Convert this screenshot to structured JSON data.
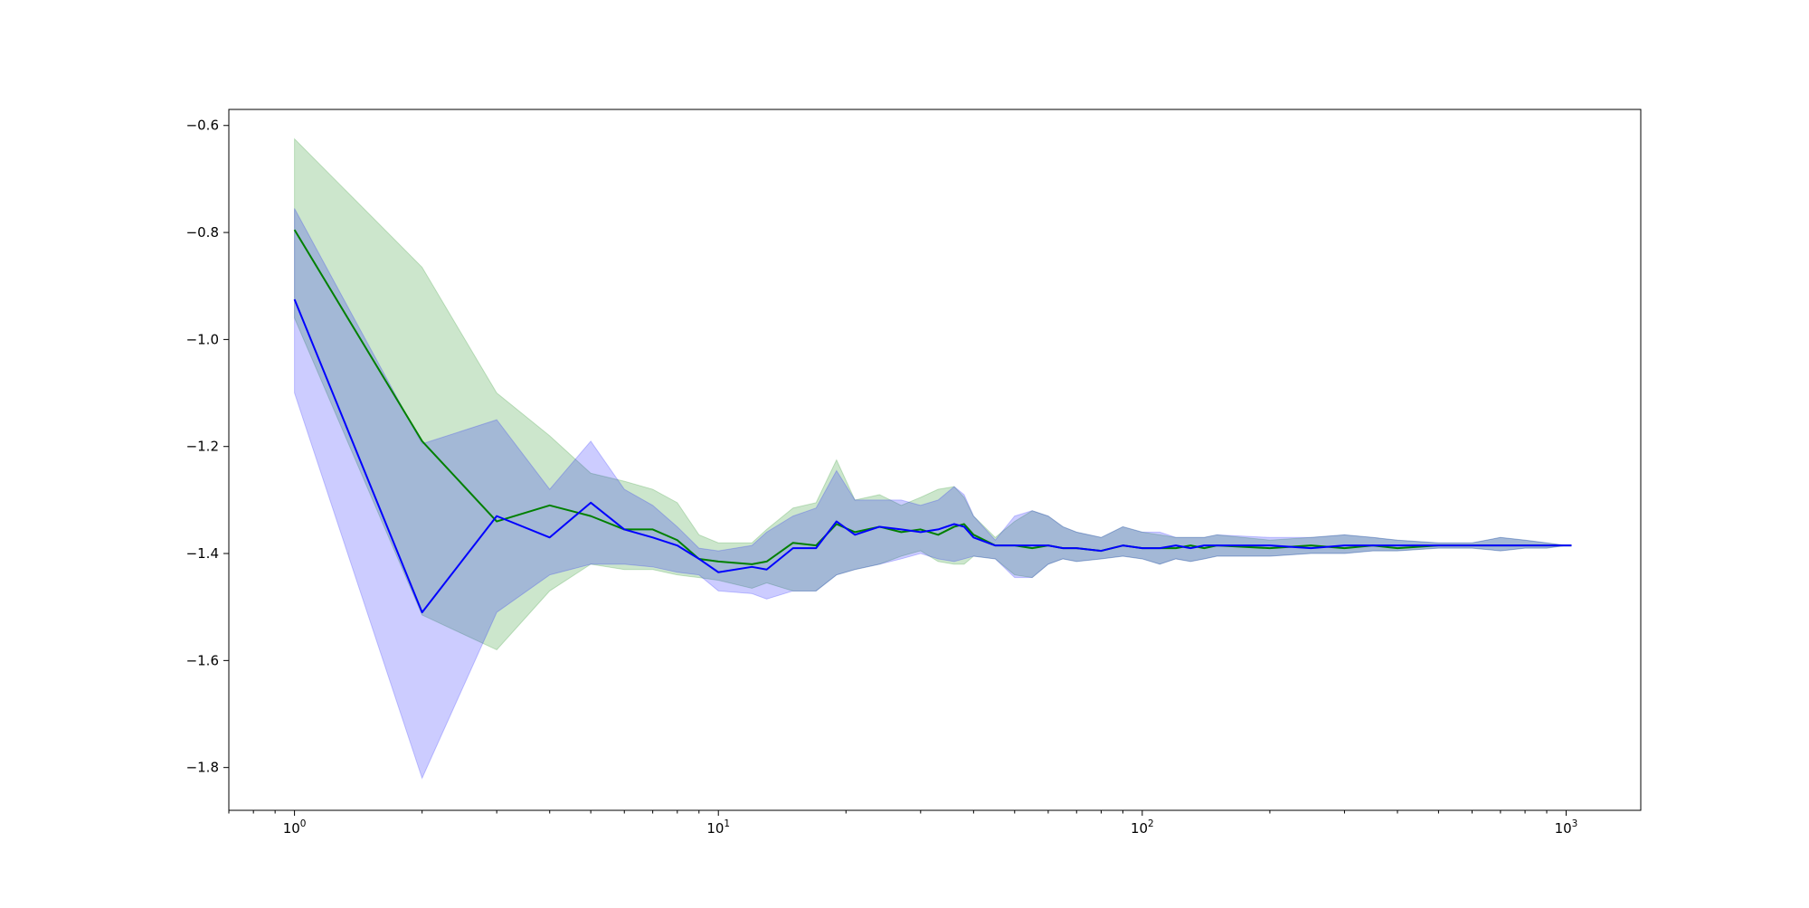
{
  "chart_data": {
    "type": "line",
    "title": "",
    "xlabel": "",
    "ylabel": "",
    "xscale": "log",
    "xlim": [
      0.7,
      1500
    ],
    "ylim": [
      -1.88,
      -0.57
    ],
    "grid": false,
    "legend": "none",
    "x_ticks": [
      {
        "value": 1,
        "base": "10",
        "exp": "0"
      },
      {
        "value": 10,
        "base": "10",
        "exp": "1"
      },
      {
        "value": 100,
        "base": "10",
        "exp": "2"
      },
      {
        "value": 1000,
        "base": "10",
        "exp": "3"
      }
    ],
    "y_ticks": [
      {
        "value": -0.6,
        "label": "−0.6"
      },
      {
        "value": -0.8,
        "label": "−0.8"
      },
      {
        "value": -1.0,
        "label": "−1.0"
      },
      {
        "value": -1.2,
        "label": "−1.2"
      },
      {
        "value": -1.4,
        "label": "−1.4"
      },
      {
        "value": -1.6,
        "label": "−1.6"
      },
      {
        "value": -1.8,
        "label": "−1.8"
      }
    ],
    "series": [
      {
        "color": "#008000",
        "band_color": "#008000",
        "band_opacity": 0.2,
        "x": [
          1,
          2,
          3,
          4,
          5,
          6,
          7,
          8,
          9,
          10,
          12,
          13,
          15,
          17,
          19,
          21,
          24,
          27,
          30,
          33,
          36,
          38,
          40,
          45,
          50,
          55,
          60,
          65,
          70,
          80,
          90,
          100,
          110,
          120,
          130,
          140,
          150,
          200,
          250,
          300,
          350,
          400,
          500,
          600,
          700,
          800,
          900,
          1000,
          1030
        ],
        "y": [
          -0.795,
          -1.19,
          -1.34,
          -1.31,
          -1.33,
          -1.355,
          -1.355,
          -1.375,
          -1.41,
          -1.415,
          -1.42,
          -1.415,
          -1.38,
          -1.385,
          -1.345,
          -1.36,
          -1.35,
          -1.36,
          -1.355,
          -1.365,
          -1.35,
          -1.345,
          -1.365,
          -1.385,
          -1.385,
          -1.39,
          -1.385,
          -1.39,
          -1.39,
          -1.395,
          -1.385,
          -1.39,
          -1.39,
          -1.39,
          -1.385,
          -1.39,
          -1.385,
          -1.39,
          -1.385,
          -1.39,
          -1.385,
          -1.39,
          -1.385,
          -1.385,
          -1.385,
          -1.385,
          -1.385,
          -1.385,
          -1.385
        ],
        "upper": [
          -0.625,
          -0.865,
          -1.1,
          -1.18,
          -1.25,
          -1.265,
          -1.28,
          -1.305,
          -1.365,
          -1.38,
          -1.38,
          -1.355,
          -1.315,
          -1.305,
          -1.225,
          -1.3,
          -1.29,
          -1.31,
          -1.295,
          -1.28,
          -1.275,
          -1.295,
          -1.33,
          -1.37,
          -1.34,
          -1.32,
          -1.33,
          -1.35,
          -1.36,
          -1.37,
          -1.35,
          -1.36,
          -1.365,
          -1.37,
          -1.37,
          -1.37,
          -1.365,
          -1.375,
          -1.37,
          -1.365,
          -1.37,
          -1.375,
          -1.38,
          -1.38,
          -1.37,
          -1.375,
          -1.38,
          -1.385,
          -1.385
        ],
        "lower": [
          -0.96,
          -1.515,
          -1.58,
          -1.47,
          -1.42,
          -1.43,
          -1.43,
          -1.44,
          -1.445,
          -1.45,
          -1.465,
          -1.455,
          -1.47,
          -1.47,
          -1.44,
          -1.43,
          -1.42,
          -1.405,
          -1.395,
          -1.415,
          -1.42,
          -1.42,
          -1.405,
          -1.41,
          -1.44,
          -1.445,
          -1.42,
          -1.41,
          -1.415,
          -1.41,
          -1.405,
          -1.41,
          -1.42,
          -1.41,
          -1.415,
          -1.41,
          -1.405,
          -1.405,
          -1.4,
          -1.4,
          -1.395,
          -1.395,
          -1.39,
          -1.39,
          -1.395,
          -1.39,
          -1.39,
          -1.385,
          -1.385
        ]
      },
      {
        "color": "#0000ff",
        "band_color": "#0000ff",
        "band_opacity": 0.2,
        "x": [
          1,
          2,
          3,
          4,
          5,
          6,
          7,
          8,
          9,
          10,
          12,
          13,
          15,
          17,
          19,
          21,
          24,
          27,
          30,
          33,
          36,
          38,
          40,
          45,
          50,
          55,
          60,
          65,
          70,
          80,
          90,
          100,
          110,
          120,
          130,
          140,
          150,
          200,
          250,
          300,
          350,
          400,
          500,
          600,
          700,
          800,
          900,
          1000,
          1030
        ],
        "y": [
          -0.925,
          -1.51,
          -1.33,
          -1.37,
          -1.305,
          -1.355,
          -1.37,
          -1.385,
          -1.41,
          -1.435,
          -1.425,
          -1.43,
          -1.39,
          -1.39,
          -1.34,
          -1.365,
          -1.35,
          -1.355,
          -1.36,
          -1.355,
          -1.345,
          -1.35,
          -1.37,
          -1.385,
          -1.385,
          -1.385,
          -1.385,
          -1.39,
          -1.39,
          -1.395,
          -1.385,
          -1.39,
          -1.39,
          -1.385,
          -1.39,
          -1.385,
          -1.385,
          -1.385,
          -1.39,
          -1.385,
          -1.385,
          -1.385,
          -1.385,
          -1.385,
          -1.385,
          -1.385,
          -1.385,
          -1.385,
          -1.385
        ],
        "upper": [
          -0.755,
          -1.195,
          -1.15,
          -1.28,
          -1.19,
          -1.28,
          -1.31,
          -1.35,
          -1.39,
          -1.395,
          -1.385,
          -1.36,
          -1.33,
          -1.315,
          -1.245,
          -1.3,
          -1.3,
          -1.3,
          -1.31,
          -1.3,
          -1.275,
          -1.29,
          -1.33,
          -1.375,
          -1.33,
          -1.32,
          -1.33,
          -1.35,
          -1.36,
          -1.37,
          -1.35,
          -1.36,
          -1.36,
          -1.37,
          -1.37,
          -1.37,
          -1.365,
          -1.37,
          -1.37,
          -1.365,
          -1.37,
          -1.375,
          -1.38,
          -1.38,
          -1.37,
          -1.375,
          -1.38,
          -1.385,
          -1.385
        ],
        "lower": [
          -1.1,
          -1.82,
          -1.51,
          -1.44,
          -1.42,
          -1.42,
          -1.425,
          -1.435,
          -1.44,
          -1.47,
          -1.475,
          -1.485,
          -1.47,
          -1.47,
          -1.44,
          -1.43,
          -1.42,
          -1.41,
          -1.4,
          -1.41,
          -1.415,
          -1.41,
          -1.405,
          -1.41,
          -1.445,
          -1.445,
          -1.42,
          -1.41,
          -1.415,
          -1.41,
          -1.405,
          -1.41,
          -1.42,
          -1.41,
          -1.415,
          -1.41,
          -1.405,
          -1.405,
          -1.4,
          -1.4,
          -1.395,
          -1.395,
          -1.39,
          -1.39,
          -1.395,
          -1.39,
          -1.39,
          -1.385,
          -1.385
        ]
      }
    ]
  }
}
